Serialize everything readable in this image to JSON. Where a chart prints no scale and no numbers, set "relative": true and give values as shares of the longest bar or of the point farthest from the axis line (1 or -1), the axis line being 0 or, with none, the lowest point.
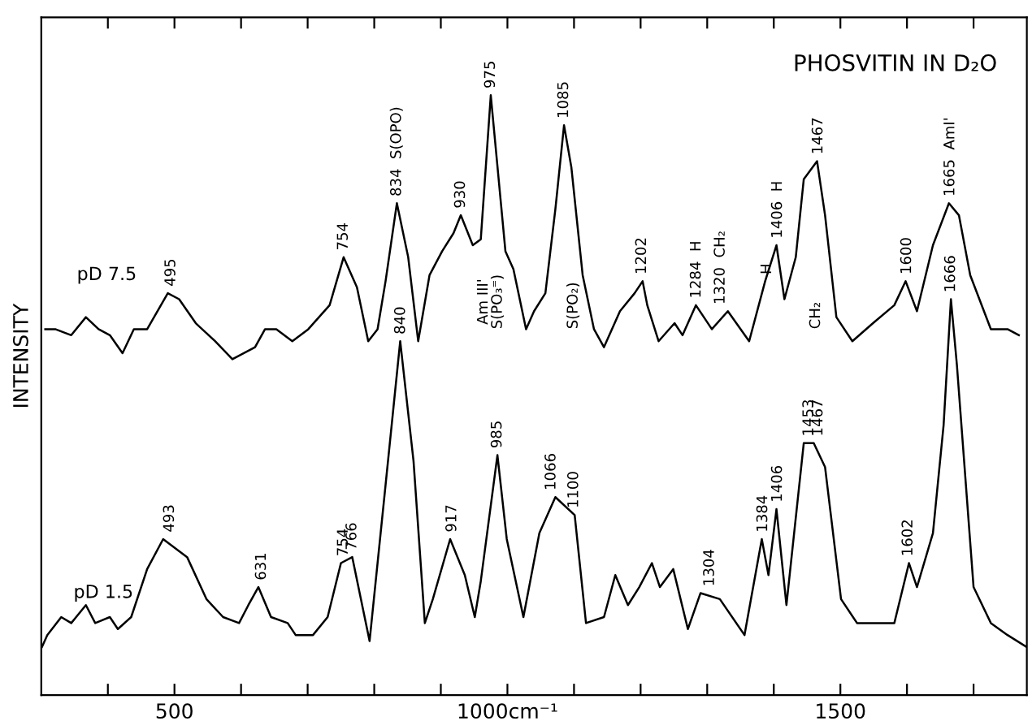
{
  "chart_data": {
    "type": "line",
    "title": "PHOSVITIN IN D₂O",
    "ylabel": "INTENSITY",
    "relative": true,
    "grid": false,
    "legend": false,
    "marker": "none",
    "line_style": "solid",
    "xlim": [
      300,
      1780
    ],
    "xticks": [
      {
        "value": 400,
        "label": null
      },
      500,
      {
        "value": 600,
        "label": null
      },
      {
        "value": 700,
        "label": null
      },
      {
        "value": 800,
        "label": null
      },
      {
        "value": 900,
        "label": null
      },
      {
        "value": 1000,
        "label": "1000cm⁻¹"
      },
      {
        "value": 1100,
        "label": null
      },
      {
        "value": 1200,
        "label": null
      },
      {
        "value": 1300,
        "label": null
      },
      {
        "value": 1400,
        "label": null
      },
      1500,
      {
        "value": 1600,
        "label": null
      },
      {
        "value": 1700,
        "label": null
      }
    ],
    "series": [
      {
        "name": "pD 7.5",
        "color": "#000000",
        "x": [
          306,
          321,
          345,
          367,
          386,
          403,
          422,
          439,
          459,
          490,
          507,
          532,
          561,
          587,
          621,
          636,
          653,
          677,
          701,
          733,
          754,
          774,
          791,
          805,
          817,
          834,
          851,
          866,
          883,
          902,
          919,
          930,
          948,
          960,
          975,
          997,
          1009,
          1028,
          1040,
          1057,
          1072,
          1085,
          1096,
          1113,
          1130,
          1145,
          1169,
          1191,
          1203,
          1210,
          1227,
          1251,
          1263,
          1283,
          1307,
          1331,
          1363,
          1387,
          1404,
          1416,
          1433,
          1445,
          1465,
          1477,
          1494,
          1518,
          1549,
          1581,
          1598,
          1615,
          1639,
          1663,
          1678,
          1695,
          1726,
          1751,
          1768
        ],
        "values": [
          0.61,
          0.61,
          0.6,
          0.63,
          0.61,
          0.6,
          0.57,
          0.61,
          0.61,
          0.67,
          0.66,
          0.62,
          0.59,
          0.56,
          0.58,
          0.61,
          0.61,
          0.59,
          0.61,
          0.65,
          0.73,
          0.68,
          0.59,
          0.61,
          0.69,
          0.82,
          0.73,
          0.59,
          0.7,
          0.74,
          0.77,
          0.8,
          0.75,
          0.76,
          1.0,
          0.74,
          0.71,
          0.61,
          0.64,
          0.67,
          0.81,
          0.95,
          0.88,
          0.7,
          0.61,
          0.58,
          0.64,
          0.67,
          0.69,
          0.65,
          0.59,
          0.62,
          0.6,
          0.65,
          0.61,
          0.64,
          0.59,
          0.69,
          0.75,
          0.66,
          0.73,
          0.86,
          0.89,
          0.8,
          0.63,
          0.59,
          0.62,
          0.65,
          0.69,
          0.64,
          0.75,
          0.82,
          0.8,
          0.7,
          0.61,
          0.61,
          0.6
        ]
      },
      {
        "name": "pD 1.5",
        "color": "#000000",
        "x": [
          301,
          309,
          330,
          345,
          367,
          381,
          403,
          415,
          435,
          459,
          483,
          519,
          548,
          573,
          597,
          611,
          626,
          645,
          670,
          682,
          708,
          730,
          750,
          767,
          793,
          817,
          839,
          859,
          876,
          888,
          914,
          936,
          951,
          960,
          985,
          999,
          1024,
          1048,
          1072,
          1101,
          1118,
          1145,
          1162,
          1181,
          1198,
          1217,
          1229,
          1249,
          1271,
          1290,
          1319,
          1356,
          1382,
          1392,
          1404,
          1419,
          1445,
          1460,
          1477,
          1501,
          1525,
          1549,
          1581,
          1603,
          1615,
          1639,
          1655,
          1666,
          1675,
          1700,
          1726,
          1751,
          1780
        ],
        "values": [
          0.08,
          0.1,
          0.13,
          0.12,
          0.15,
          0.12,
          0.13,
          0.11,
          0.13,
          0.21,
          0.26,
          0.23,
          0.16,
          0.13,
          0.12,
          0.15,
          0.18,
          0.13,
          0.12,
          0.1,
          0.1,
          0.13,
          0.22,
          0.23,
          0.09,
          0.35,
          0.59,
          0.39,
          0.12,
          0.16,
          0.26,
          0.2,
          0.13,
          0.19,
          0.4,
          0.26,
          0.13,
          0.27,
          0.33,
          0.3,
          0.12,
          0.13,
          0.2,
          0.15,
          0.18,
          0.22,
          0.18,
          0.21,
          0.11,
          0.17,
          0.16,
          0.1,
          0.26,
          0.2,
          0.31,
          0.15,
          0.42,
          0.42,
          0.38,
          0.16,
          0.12,
          0.12,
          0.12,
          0.22,
          0.18,
          0.27,
          0.45,
          0.66,
          0.55,
          0.18,
          0.12,
          0.1,
          0.08
        ]
      }
    ],
    "annotations": [
      {
        "text": "495",
        "x": 495,
        "y": 0.67
      },
      {
        "text": "754",
        "x": 754,
        "y": 0.73
      },
      {
        "text": "834  S(OPO)",
        "x": 834,
        "y": 0.82
      },
      {
        "text": "930",
        "x": 930,
        "y": 0.8
      },
      {
        "text": "975",
        "x": 975,
        "y": 1.0
      },
      {
        "text": "1085",
        "x": 1085,
        "y": 0.95
      },
      {
        "text": "1202",
        "x": 1202,
        "y": 0.69
      },
      {
        "text": "1284  H",
        "x": 1284,
        "y": 0.65
      },
      {
        "text": "1320  CH₂",
        "x": 1320,
        "y": 0.64
      },
      {
        "text": "H",
        "x": 1390,
        "y": 0.69
      },
      {
        "text": "1406  H",
        "x": 1406,
        "y": 0.75
      },
      {
        "text": "1467",
        "x": 1467,
        "y": 0.89
      },
      {
        "text": "1600",
        "x": 1600,
        "y": 0.69
      },
      {
        "text": "1665  AmI'",
        "x": 1665,
        "y": 0.82
      },
      "Am III'\nS(PO₃⁼)",
      "S(PO₂)",
      "CH₂",
      {
        "text": "493",
        "x": 493,
        "y": 0.26
      },
      {
        "text": "631",
        "x": 631,
        "y": 0.18
      },
      {
        "text": "754",
        "x": 754,
        "y": 0.22
      },
      {
        "text": "766",
        "x": 767,
        "y": 0.23
      },
      {
        "text": "840",
        "x": 840,
        "y": 0.59
      },
      {
        "text": "917",
        "x": 917,
        "y": 0.26
      },
      {
        "text": "985",
        "x": 985,
        "y": 0.4
      },
      {
        "text": "1066",
        "x": 1066,
        "y": 0.33
      },
      {
        "text": "1100",
        "x": 1100,
        "y": 0.3
      },
      {
        "text": "1304",
        "x": 1304,
        "y": 0.17
      },
      {
        "text": "1384",
        "x": 1384,
        "y": 0.26
      },
      {
        "text": "1406",
        "x": 1406,
        "y": 0.31
      },
      {
        "text": "1453",
        "x": 1453,
        "y": 0.42
      },
      {
        "text": "1467",
        "x": 1467,
        "y": 0.42
      },
      {
        "text": "1602",
        "x": 1602,
        "y": 0.22
      },
      {
        "text": "1666",
        "x": 1666,
        "y": 0.66
      }
    ]
  }
}
